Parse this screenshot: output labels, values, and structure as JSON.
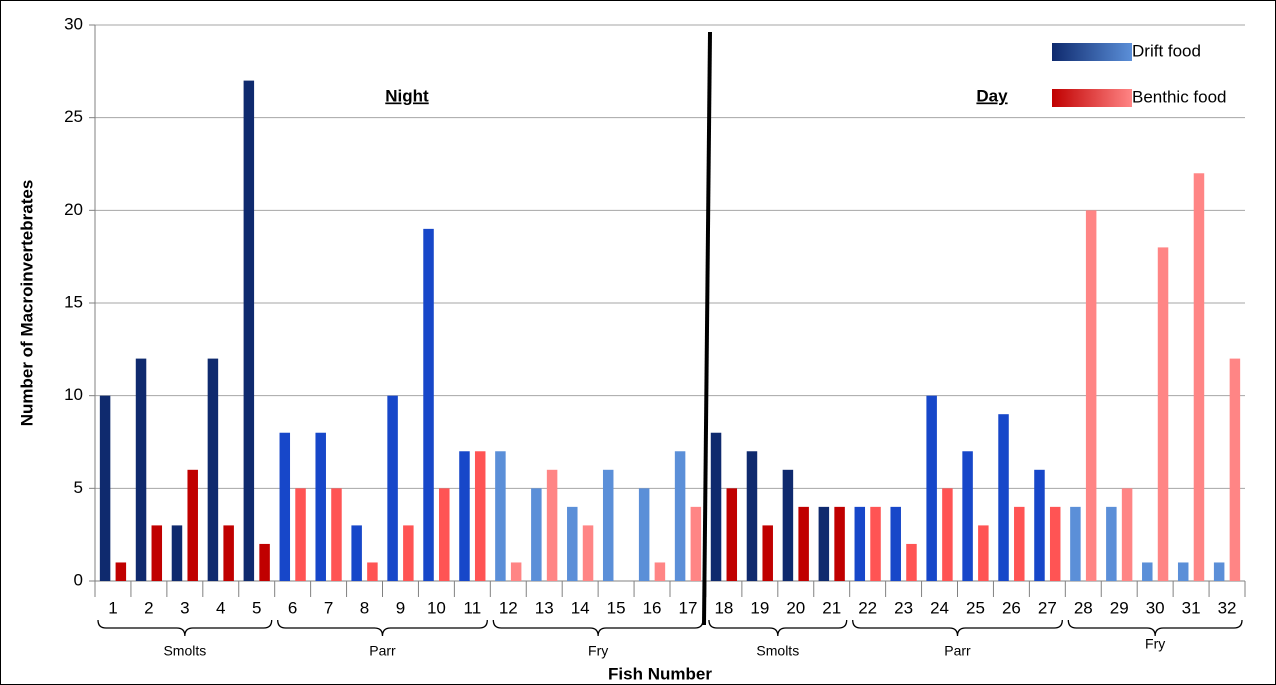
{
  "chart_data": {
    "type": "bar",
    "y_label": "Number of Macroinvertebrates",
    "x_label": "Fish Number",
    "annotations": [
      "Night",
      "Day"
    ],
    "categories": [
      "1",
      "2",
      "3",
      "4",
      "5",
      "6",
      "7",
      "8",
      "9",
      "10",
      "11",
      "12",
      "13",
      "14",
      "15",
      "16",
      "17",
      "18",
      "19",
      "20",
      "21",
      "22",
      "23",
      "24",
      "25",
      "26",
      "27",
      "28",
      "29",
      "30",
      "31",
      "32"
    ],
    "groups": [
      {
        "label": "Smolts",
        "count": 5
      },
      {
        "label": "Parr",
        "count": 6
      },
      {
        "label": "Fry",
        "count": 6
      },
      {
        "label": "Smolts",
        "count": 4
      },
      {
        "label": "Parr",
        "count": 6
      },
      {
        "label": "Fry",
        "count": 5
      }
    ],
    "series": [
      {
        "name": "Drift food",
        "values": [
          10,
          12,
          3,
          12,
          27,
          8,
          8,
          3,
          10,
          19,
          7,
          7,
          5,
          4,
          6,
          5,
          7,
          8,
          7,
          6,
          4,
          4,
          4,
          10,
          7,
          9,
          6,
          4,
          4,
          1,
          1,
          1
        ],
        "colors": [
          "#0f2a6e",
          "#0f2a6e",
          "#0f2a6e",
          "#0f2a6e",
          "#0f2a6e",
          "#1747c9",
          "#1747c9",
          "#1747c9",
          "#1747c9",
          "#1747c9",
          "#1747c9",
          "#5b8fd8",
          "#5b8fd8",
          "#5b8fd8",
          "#5b8fd8",
          "#5b8fd8",
          "#5b8fd8",
          "#0f2a6e",
          "#0f2a6e",
          "#0f2a6e",
          "#0f2a6e",
          "#1747c9",
          "#1747c9",
          "#1747c9",
          "#1747c9",
          "#1747c9",
          "#1747c9",
          "#5b8fd8",
          "#5b8fd8",
          "#5b8fd8",
          "#5b8fd8",
          "#5b8fd8"
        ]
      },
      {
        "name": "Benthic food",
        "values": [
          1,
          3,
          6,
          3,
          2,
          5,
          5,
          1,
          3,
          5,
          7,
          1,
          6,
          3,
          0,
          1,
          4,
          5,
          3,
          4,
          4,
          4,
          2,
          5,
          3,
          4,
          4,
          20,
          5,
          18,
          22,
          12
        ],
        "colors": [
          "#c00000",
          "#c00000",
          "#c00000",
          "#c00000",
          "#c00000",
          "#ff5454",
          "#ff5454",
          "#ff5454",
          "#ff5454",
          "#ff5454",
          "#ff5454",
          "#ff8585",
          "#ff8585",
          "#ff8585",
          "#ff8585",
          "#ff8585",
          "#ff8585",
          "#c00000",
          "#c00000",
          "#c00000",
          "#c00000",
          "#ff5454",
          "#ff5454",
          "#ff5454",
          "#ff5454",
          "#ff5454",
          "#ff5454",
          "#ff8585",
          "#ff8585",
          "#ff8585",
          "#ff8585",
          "#ff8585"
        ]
      }
    ],
    "ylim": [
      0,
      30
    ],
    "yticks": [
      0,
      5,
      10,
      15,
      20,
      25,
      30
    ],
    "grid": true,
    "legend": "top-right"
  }
}
